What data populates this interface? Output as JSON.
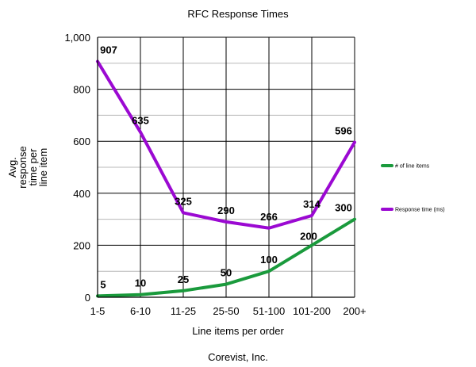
{
  "chart_data": {
    "type": "line",
    "title": "RFC Response Times",
    "xlabel": "Line items per order",
    "ylabel": "Avg. response time per line item",
    "footer": "Corevist, Inc.",
    "categories": [
      "1-5",
      "6-10",
      "11-25",
      "25-50",
      "51-100",
      "101-200",
      "200+"
    ],
    "ylim": [
      0,
      1000
    ],
    "yticks": [
      0,
      200,
      400,
      600,
      800,
      1000
    ],
    "ytick_labels": [
      "0",
      "200",
      "400",
      "600",
      "800",
      "1,000"
    ],
    "grid": true,
    "legend_position": "right",
    "series": [
      {
        "name": "# of line items",
        "color": "#1a9a3c",
        "values": [
          5,
          10,
          25,
          50,
          100,
          200,
          300
        ]
      },
      {
        "name": "Response time (ms)",
        "color": "#9b09d2",
        "values": [
          907,
          635,
          325,
          290,
          266,
          314,
          596
        ]
      }
    ]
  }
}
